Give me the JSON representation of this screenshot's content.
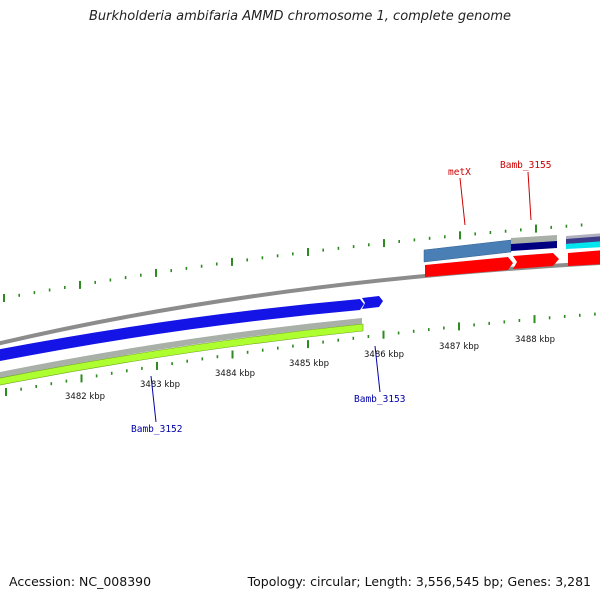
{
  "title": "Burkholderia ambifaria AMMD chromosome 1, complete genome",
  "tick_labels": [
    "3482 kbp",
    "3483 kbp",
    "3484 kbp",
    "3485 kbp",
    "3486 kbp",
    "3487 kbp",
    "3488 kbp"
  ],
  "gene_labels": {
    "metX": "metX",
    "bamb_3155": "Bamb_3155",
    "bamb_3153": "Bamb_3153",
    "bamb_3152": "Bamb_3152"
  },
  "colors": {
    "outer_ticks": "#2e8b22",
    "backbone": "#8c8c8c",
    "blue_feature": "#1414e6",
    "green_feature": "#adff2f",
    "gray_feature": "#a8b0a8",
    "steelblue_feature": "#4a7fb5",
    "navy_feature": "#000080",
    "red_feature": "#ff0000",
    "cyan_feature": "#00e5ee",
    "label_red": "#cc0000",
    "label_blue": "#0000aa"
  },
  "footer": {
    "accession": "Accession: NC_008390",
    "topology": "Topology: circular; Length: 3,556,545 bp; Genes: 3,281"
  }
}
